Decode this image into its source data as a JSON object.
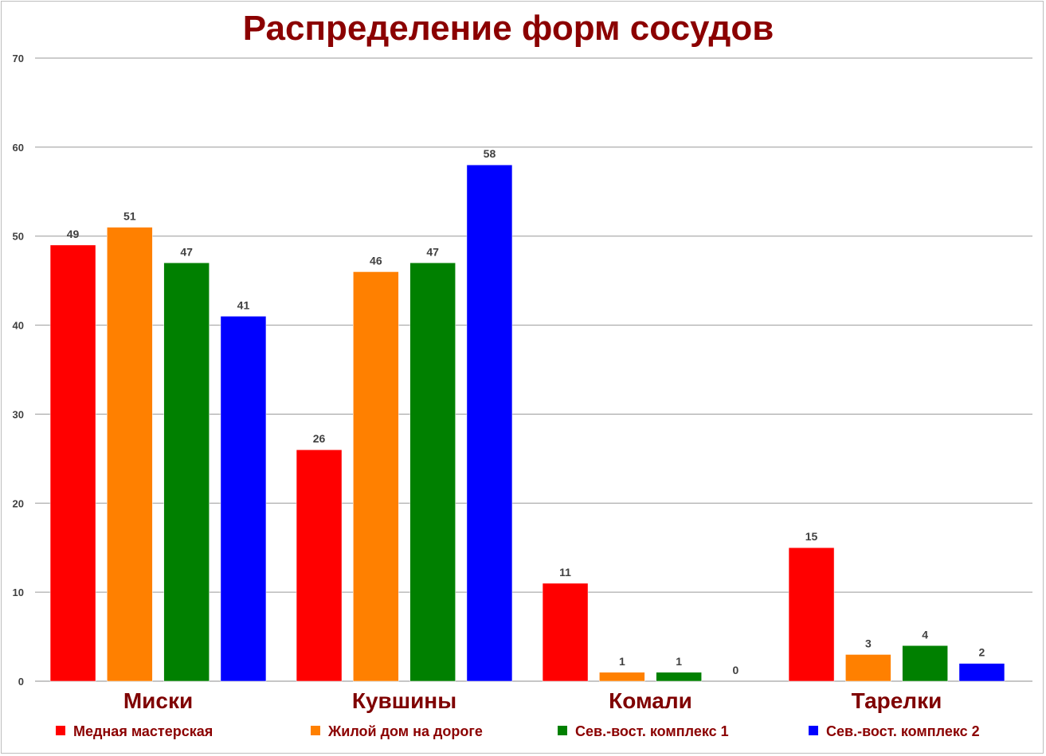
{
  "chart_data": {
    "type": "bar",
    "title": "Распределение форм сосудов",
    "categories": [
      "Миски",
      "Кувшины",
      "Комали",
      "Тарелки"
    ],
    "series": [
      {
        "name": "Медная мастерская",
        "color": "#ff0000",
        "values": [
          49,
          26,
          11,
          15
        ]
      },
      {
        "name": "Жилой дом на дороге",
        "color": "#ff8000",
        "values": [
          51,
          46,
          1,
          3
        ]
      },
      {
        "name": "Сев.-вост. комплекс 1",
        "color": "#008000",
        "values": [
          47,
          47,
          1,
          4
        ]
      },
      {
        "name": "Сев.-вост. комплекс 2",
        "color": "#0000ff",
        "values": [
          41,
          58,
          0,
          2
        ]
      }
    ],
    "ylim": [
      0,
      70
    ],
    "yticks": [
      0,
      10,
      20,
      30,
      40,
      50,
      60,
      70
    ],
    "grid": true,
    "legend_position": "bottom",
    "colors": {
      "title": "#8b0000",
      "category_labels": "#7f0000",
      "value_labels": "#404040",
      "grid": "#999999"
    }
  }
}
